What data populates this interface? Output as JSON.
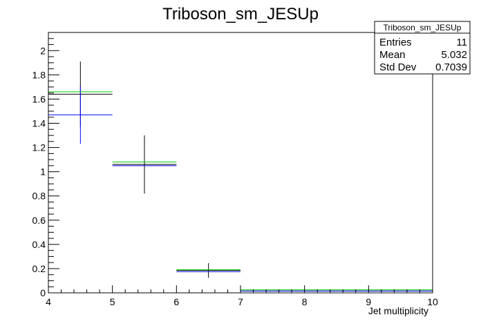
{
  "chart_data": {
    "type": "histogram",
    "title": "Triboson_sm_JESUp",
    "xlabel": "Jet multiplicity",
    "ylabel": "",
    "xlim": [
      4,
      10
    ],
    "ylim": [
      0,
      2.15
    ],
    "x_ticks": [
      4,
      5,
      6,
      7,
      8,
      9,
      10
    ],
    "y_ticks": [
      0,
      0.2,
      0.4,
      0.6,
      0.8,
      1,
      1.2,
      1.4,
      1.6,
      1.8,
      2
    ],
    "x_tick_labels": [
      "4",
      "5",
      "6",
      "7",
      "8",
      "9",
      "10"
    ],
    "y_tick_labels": [
      "0",
      "0.2",
      "0.4",
      "0.6",
      "0.8",
      "1",
      "1.2",
      "1.4",
      "1.6",
      "1.8",
      "2"
    ],
    "grid": false,
    "series": [
      {
        "color": "#000000",
        "bins": [
          {
            "x0": 4,
            "x1": 5,
            "y": 1.64,
            "err": 0.27
          },
          {
            "x0": 5,
            "x1": 6,
            "y": 1.06,
            "err": 0.24
          },
          {
            "x0": 6,
            "x1": 7,
            "y": 0.185,
            "err": 0.06
          },
          {
            "x0": 7,
            "x1": 8,
            "y": 0.015,
            "err": 0.0
          },
          {
            "x0": 8,
            "x1": 9,
            "y": 0.015,
            "err": 0.0
          },
          {
            "x0": 9,
            "x1": 10,
            "y": 0.015,
            "err": 0.0
          }
        ]
      },
      {
        "color": "#0000ff",
        "bins": [
          {
            "x0": 4,
            "x1": 5,
            "y": 1.47,
            "err": 0.24
          },
          {
            "x0": 5,
            "x1": 6,
            "y": 1.05,
            "err": 0.0
          },
          {
            "x0": 6,
            "x1": 7,
            "y": 0.175,
            "err": 0.0
          },
          {
            "x0": 7,
            "x1": 8,
            "y": 0.015,
            "err": 0.0
          },
          {
            "x0": 8,
            "x1": 9,
            "y": 0.015,
            "err": 0.0
          },
          {
            "x0": 9,
            "x1": 10,
            "y": 0.015,
            "err": 0.0
          }
        ]
      },
      {
        "color": "#00cc00",
        "bins": [
          {
            "x0": 4,
            "x1": 5,
            "y": 1.66,
            "err": 0.0
          },
          {
            "x0": 5,
            "x1": 6,
            "y": 1.08,
            "err": 0.0
          },
          {
            "x0": 6,
            "x1": 7,
            "y": 0.19,
            "err": 0.0
          },
          {
            "x0": 7,
            "x1": 8,
            "y": 0.025,
            "err": 0.0
          },
          {
            "x0": 8,
            "x1": 9,
            "y": 0.025,
            "err": 0.0
          },
          {
            "x0": 9,
            "x1": 10,
            "y": 0.025,
            "err": 0.0
          }
        ]
      }
    ],
    "stats_box": {
      "name": "Triboson_sm_JESUp",
      "rows": [
        {
          "label": "Entries",
          "value": "11"
        },
        {
          "label": "Mean",
          "value": "5.032"
        },
        {
          "label": "Std Dev",
          "value": "0.7039"
        }
      ],
      "placement": "top-right"
    }
  }
}
